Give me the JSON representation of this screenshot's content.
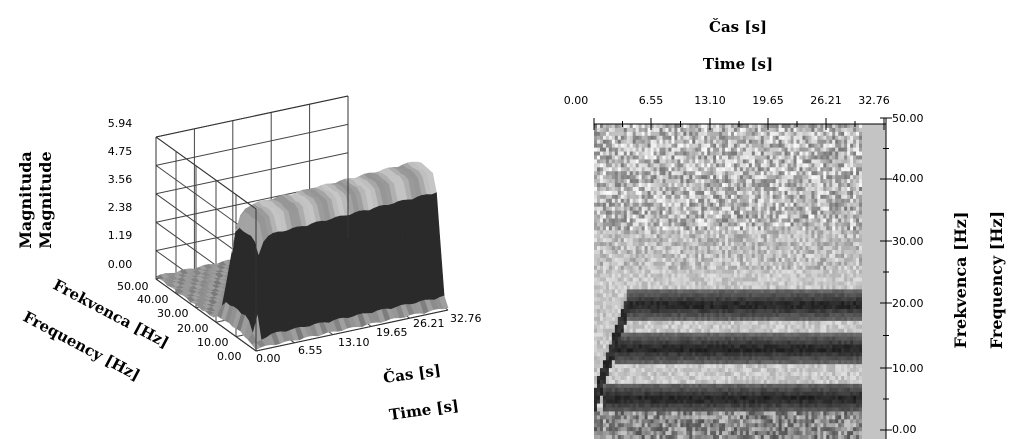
{
  "chart_data": [
    {
      "type": "surface3d",
      "xlabel": [
        "Čas [s]",
        "Time [s]"
      ],
      "ylabel": [
        "Frekvenca [Hz]",
        "Frequency [Hz]"
      ],
      "zlabel": [
        "Magnituda",
        "Magnitude"
      ],
      "x_ticks": [
        "0.00",
        "6.55",
        "13.10",
        "19.65",
        "26.21",
        "32.76"
      ],
      "y_ticks": [
        "0.00",
        "10.00",
        "20.00",
        "30.00",
        "40.00",
        "50.00"
      ],
      "z_ticks": [
        "0.00",
        "1.19",
        "2.38",
        "3.56",
        "4.75",
        "5.94"
      ],
      "xlim": [
        0,
        32.76
      ],
      "ylim": [
        0,
        50
      ],
      "zlim": [
        0,
        5.94
      ],
      "grid": true,
      "plateau_magnitude": 5.2
    },
    {
      "type": "heatmap",
      "title": [
        "Čas [s]",
        "Time [s]"
      ],
      "ylabel": [
        "Frekvenca [Hz]",
        "Frequency [Hz]"
      ],
      "x_ticks": [
        "0.00",
        "6.55",
        "13.10",
        "19.65",
        "26.21",
        "32.76"
      ],
      "y_ticks": [
        "0.00",
        "10.00",
        "20.00",
        "30.00",
        "40.00",
        "50.00"
      ],
      "xlim": [
        0,
        32.76
      ],
      "ylim": [
        0,
        50
      ],
      "colormap": "grayscale",
      "dark_bands_hz": [
        20,
        13,
        5
      ]
    }
  ]
}
